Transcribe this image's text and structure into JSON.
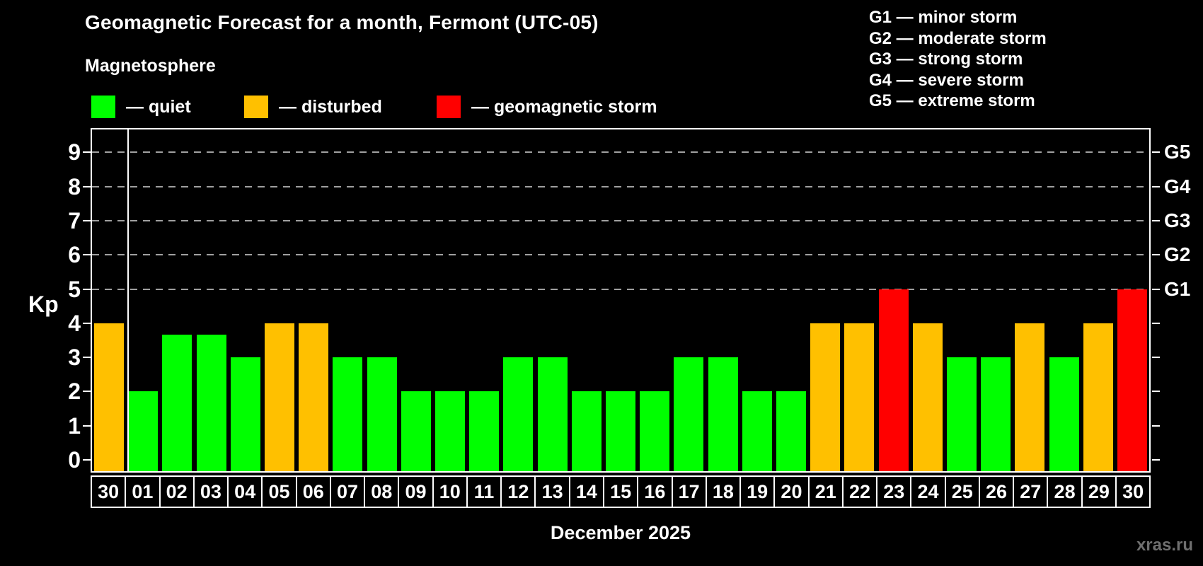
{
  "title": "Geomagnetic Forecast for a month, Fermont (UTC-05)",
  "subtitle": "Magnetosphere",
  "legend": {
    "items": [
      {
        "label": "— quiet",
        "status": "quiet",
        "color": "#00ff00"
      },
      {
        "label": "— disturbed",
        "status": "disturbed",
        "color": "#ffc000"
      },
      {
        "label": "— geomagnetic storm",
        "status": "storm",
        "color": "#ff0000"
      }
    ]
  },
  "storm_scale_legend": [
    "G1 — minor storm",
    "G2 — moderate storm",
    "G3 — strong storm",
    "G4 — severe storm",
    "G5 — extreme storm"
  ],
  "watermark": "xras.ru",
  "chart_data": {
    "type": "bar",
    "title": "Geomagnetic Forecast for a month, Fermont (UTC-05)",
    "xlabel": "December 2025",
    "ylabel": "Kp",
    "ylim": [
      -0.33,
      9.67
    ],
    "yticks": [
      0,
      1,
      2,
      3,
      4,
      5,
      6,
      7,
      8,
      9
    ],
    "gridlines_at": [
      5,
      6,
      7,
      8,
      9
    ],
    "grid": "dashed, levels 5-9 only",
    "legend_position": "top",
    "right_axis_labels": [
      {
        "label": "G1",
        "kp": 5
      },
      {
        "label": "G2",
        "kp": 6
      },
      {
        "label": "G3",
        "kp": 7
      },
      {
        "label": "G4",
        "kp": 8
      },
      {
        "label": "G5",
        "kp": 9
      }
    ],
    "categories": [
      "30",
      "01",
      "02",
      "03",
      "04",
      "05",
      "06",
      "07",
      "08",
      "09",
      "10",
      "11",
      "12",
      "13",
      "14",
      "15",
      "16",
      "17",
      "18",
      "19",
      "20",
      "21",
      "22",
      "23",
      "24",
      "25",
      "26",
      "27",
      "28",
      "29",
      "30"
    ],
    "prev_month_bar_count": 1,
    "values": [
      4,
      2,
      3.67,
      3.67,
      3,
      4,
      4,
      3,
      3,
      2,
      2,
      2,
      3,
      3,
      2,
      2,
      2,
      3,
      3,
      2,
      2,
      4,
      4,
      5,
      4,
      3,
      3,
      4,
      3,
      4,
      5
    ],
    "statuses": [
      "disturbed",
      "quiet",
      "quiet",
      "quiet",
      "quiet",
      "disturbed",
      "disturbed",
      "quiet",
      "quiet",
      "quiet",
      "quiet",
      "quiet",
      "quiet",
      "quiet",
      "quiet",
      "quiet",
      "quiet",
      "quiet",
      "quiet",
      "quiet",
      "quiet",
      "disturbed",
      "disturbed",
      "storm",
      "disturbed",
      "quiet",
      "quiet",
      "disturbed",
      "quiet",
      "disturbed",
      "storm"
    ],
    "colors": {
      "quiet": "#00ff00",
      "disturbed": "#ffc000",
      "storm": "#ff0000"
    },
    "axis_color": "#ffffff",
    "gridline_color": "#a0a0a0",
    "background_color": "#000000"
  }
}
